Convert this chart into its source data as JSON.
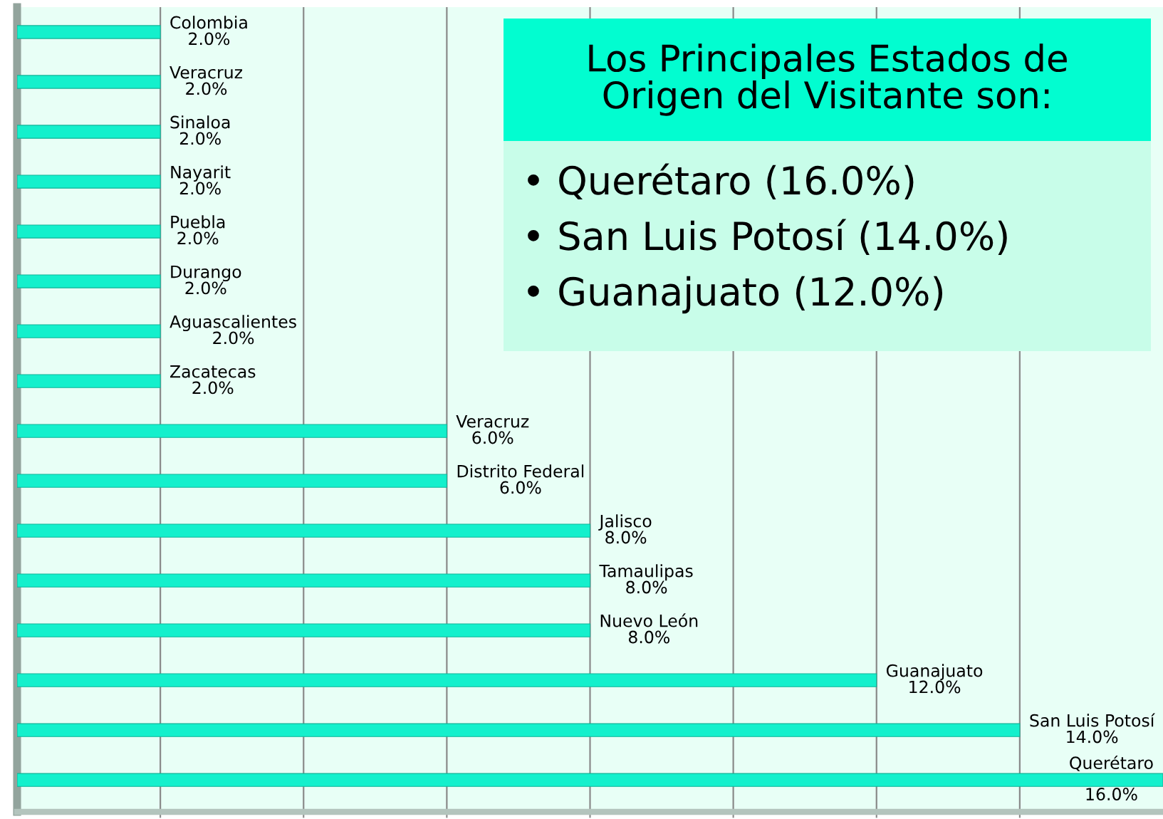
{
  "chart_data": {
    "type": "bar",
    "orientation": "horizontal",
    "title": "Los Principales Estados de\nOrigen del Visitante son:",
    "annotations": [
      "• Querétaro (16.0%)",
      "• San Luis Potosí (14.0%)",
      "• Guanajuato (12.0%)"
    ],
    "categories": [
      "Colombia",
      "Veracruz",
      "Sinaloa",
      "Nayarit",
      "Puebla",
      "Durango",
      "Aguascalientes",
      "Zacatecas",
      "Veracruz",
      "Distrito Federal",
      "Jalisco",
      "Tamaulipas",
      "Nuevo León",
      "Guanajuato",
      "San Luis Potosí",
      "Querétaro"
    ],
    "values": [
      2,
      2,
      2,
      2,
      2,
      2,
      2,
      2,
      6,
      6,
      8,
      8,
      8,
      12,
      14,
      16
    ],
    "value_labels": [
      "2.0%",
      "2.0%",
      "2.0%",
      "2.0%",
      "2.0%",
      "2.0%",
      "2.0%",
      "2.0%",
      "6.0%",
      "6.0%",
      "8.0%",
      "8.0%",
      "8.0%",
      "12.0%",
      "14.0%",
      "16.0%"
    ],
    "color": "#14f0cc",
    "xlim": [
      0,
      16
    ],
    "xticks": [
      {
        "value": 2,
        "label": null
      },
      {
        "value": 4,
        "label": null
      },
      {
        "value": 6,
        "label": null
      },
      {
        "value": 8,
        "label": null
      },
      {
        "value": 10,
        "label": null
      },
      {
        "value": 12,
        "label": null
      },
      {
        "value": 14,
        "label": null
      }
    ],
    "grid": "x",
    "tick_labels": false
  }
}
